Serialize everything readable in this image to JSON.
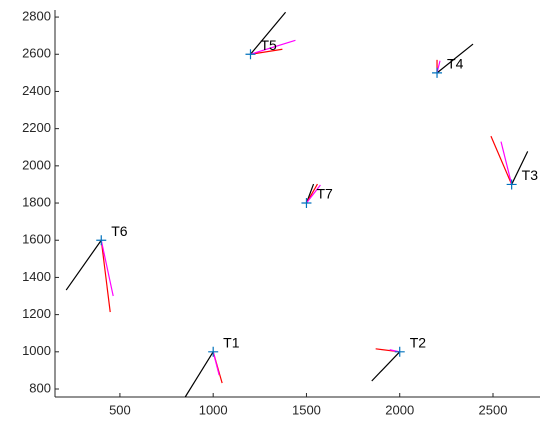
{
  "chart_data": {
    "type": "scatter",
    "xlim": [
      152,
      2752
    ],
    "ylim": [
      757,
      2838
    ],
    "xticks": [
      500,
      1000,
      1500,
      2000,
      2500
    ],
    "yticks": [
      800,
      1000,
      1200,
      1400,
      1600,
      1800,
      2000,
      2200,
      2400,
      2600,
      2800
    ],
    "points": {
      "color": "#0072bd",
      "labels": [
        "T1",
        "T2",
        "T3",
        "T4",
        "T5",
        "T6",
        "T7"
      ],
      "x": [
        1000,
        2000,
        2600,
        2200,
        1200,
        400,
        1500
      ],
      "y": [
        1000,
        1000,
        1900,
        2500,
        2600,
        1600,
        1800
      ]
    },
    "segments": [
      {
        "color": "#000000",
        "x": [
          850,
          1850,
          2686,
          2393,
          1388,
          212,
          1538
        ],
        "y": [
          757,
          843,
          2078,
          2655,
          2826,
          1332,
          1902
        ]
      },
      {
        "color": "#ff0000",
        "x": [
          1048,
          1871,
          2489,
          2200,
          1371,
          448,
          1559
        ],
        "y": [
          832,
          1016,
          2160,
          2570,
          2627,
          1214,
          1902
        ]
      },
      {
        "color": "#ff00ff",
        "x": [
          1032,
          1946,
          2543,
          2216,
          1441,
          464,
          1575
        ],
        "y": [
          875,
          1011,
          2130,
          2565,
          2675,
          1300,
          1897
        ]
      }
    ]
  }
}
